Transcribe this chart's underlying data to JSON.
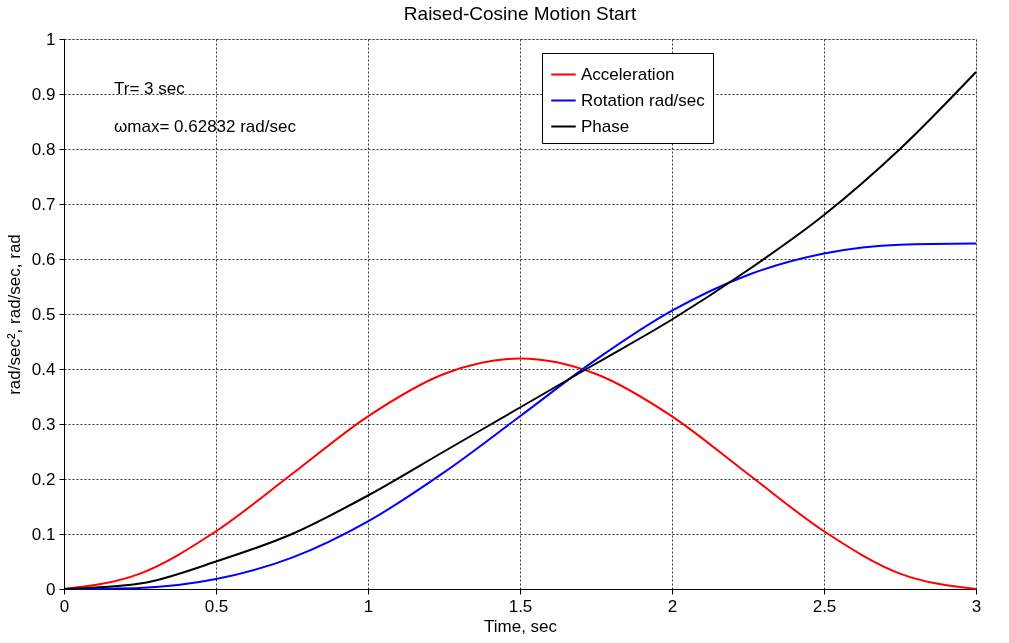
{
  "chart_data": {
    "type": "line",
    "title": "Raised-Cosine Motion Start",
    "xlabel": "Time, sec",
    "ylabel": "rad/sec², rad/sec, rad",
    "x": [
      0,
      0.25,
      0.5,
      0.75,
      1,
      1.25,
      1.5,
      1.75,
      2,
      2.25,
      2.5,
      2.75,
      3
    ],
    "series": [
      {
        "name": "Acceleration",
        "color": "#ff0000",
        "values": [
          0,
          0.028,
          0.105,
          0.209,
          0.314,
          0.391,
          0.419,
          0.391,
          0.314,
          0.209,
          0.105,
          0.028,
          0
        ]
      },
      {
        "name": "Rotation rad/sec",
        "color": "#0000ff",
        "values": [
          0,
          0.002,
          0.018,
          0.057,
          0.123,
          0.212,
          0.314,
          0.417,
          0.506,
          0.571,
          0.61,
          0.626,
          0.628
        ]
      },
      {
        "name": "Phase",
        "color": "#000000",
        "values": [
          0,
          0.01,
          0.05,
          0.1,
          0.17,
          0.25,
          0.33,
          0.41,
          0.49,
          0.58,
          0.68,
          0.8,
          0.94
        ]
      }
    ],
    "xlim": [
      0,
      3
    ],
    "xticks": [
      0,
      0.5,
      1,
      1.5,
      2,
      2.5,
      3
    ],
    "ylim": [
      0,
      1
    ],
    "yticks": [
      0,
      0.1,
      0.2,
      0.3,
      0.4,
      0.5,
      0.6,
      0.7,
      0.8,
      0.9,
      1
    ],
    "annotations": [
      "Tr= 3 sec",
      "ωmax= 0.62832 rad/sec"
    ],
    "grid": true,
    "legend": "top right",
    "marker": "none",
    "line_style": "solid"
  }
}
